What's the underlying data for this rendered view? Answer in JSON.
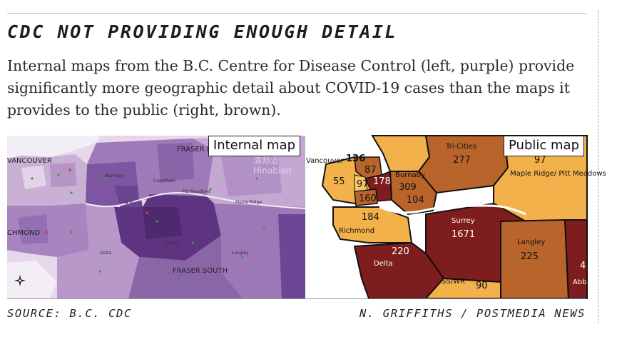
{
  "headline": "CDC NOT PROVIDING ENOUGH DETAIL",
  "subhead": "Internal maps from the B.C. Centre for Disease Control (left, purple) provide significantly more geographic detail about COVID-19 cases than the maps it provides to the public (right, brown).",
  "internal_map": {
    "tag": "Internal map",
    "labels": {
      "vancouver": "VANCOUVER",
      "richmond": "CHMOND",
      "fraser_north": "FRASER N",
      "fraser_south": "FRASER SOUTH",
      "burnaby": "Burnaby",
      "coquitlam": "Coquitlam",
      "pitt_meadows": "Pitt Meadows",
      "maple_ridge": "Maple Ridge",
      "new_west": "N.W.",
      "surrey": "Surrey",
      "delta": "Delta",
      "langley": "Langley"
    },
    "colors": {
      "light": "#d9c6e0",
      "mid": "#b08fc4",
      "dark": "#7a4a9a",
      "darkest": "#5a2f78"
    }
  },
  "public_map": {
    "tag": "Public map",
    "regions": {
      "vancouver": {
        "name": "Vancouver",
        "value": "136"
      },
      "van_a": {
        "value": "55"
      },
      "van_b": {
        "value": "97"
      },
      "van_c": {
        "value": "87"
      },
      "van_d": {
        "value": "178"
      },
      "van_e": {
        "value": "160"
      },
      "burnaby": {
        "name": "Burnaby",
        "value": "309"
      },
      "new_west": {
        "value": "104"
      },
      "tri_cities": {
        "name": "Tri-Cities",
        "value": "277"
      },
      "maple_ridge": {
        "name": "Maple Ridge/ Pitt Meadows",
        "value": "97"
      },
      "richmond": {
        "name": "Richmond",
        "value": "184"
      },
      "surrey": {
        "name": "Surrey",
        "value": "1671"
      },
      "delta": {
        "name": "Delta",
        "value": "220"
      },
      "langley": {
        "name": "Langley",
        "value": "225"
      },
      "south_surrey_white_rock": {
        "name": "SS/WR",
        "value": "90"
      },
      "abbotsford": {
        "name": "Abb",
        "value": "4"
      }
    },
    "colors": {
      "light": "#f2b14a",
      "mid": "#b8642a",
      "dark": "#7e1d1d",
      "water": "#ffffff"
    }
  },
  "watermark": {
    "line1": "海邦近",
    "line2": "Hinabian"
  },
  "footer": {
    "source": "SOURCE: B.C. CDC",
    "credit": "N. GRIFFITHS / POSTMEDIA NEWS"
  }
}
